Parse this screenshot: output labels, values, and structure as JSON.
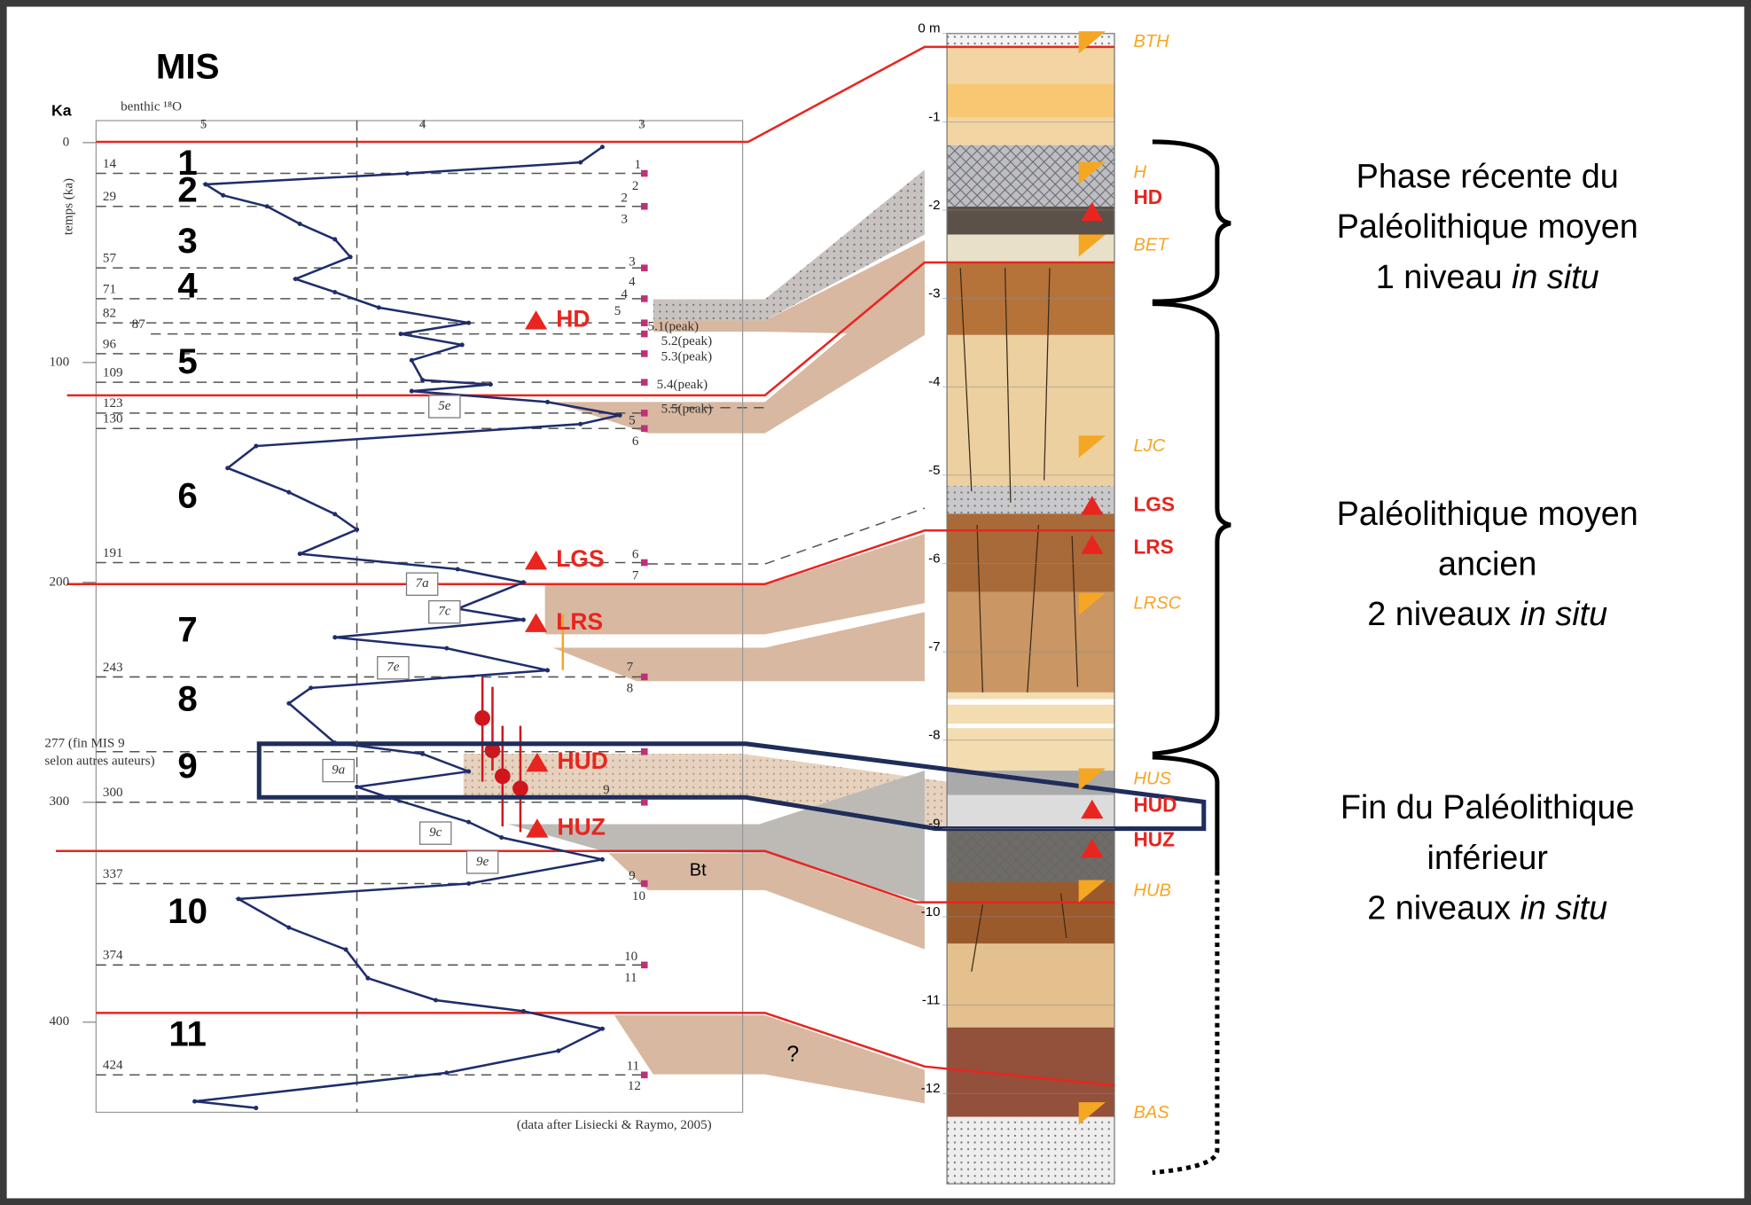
{
  "chart_data": {
    "type": "line",
    "title": "MIS",
    "y_unit_label": "Ka",
    "ylabel": "temps (ka)",
    "xlabel": "benthic ¹⁸O",
    "source": "(data after Lisiecki & Raymo, 2005)",
    "xlim": [
      5.49,
      2.54
    ],
    "xticks": [
      5,
      4,
      3
    ],
    "ylim": [
      -10,
      441
    ],
    "yticks": [
      0,
      100,
      200,
      300,
      400
    ],
    "reference_x": 4.3,
    "series": [
      {
        "color": "#1f2d6b",
        "x": [
          3.18,
          3.28,
          4.07,
          4.99,
          4.91,
          4.71,
          4.56,
          4.4,
          4.33,
          4.58,
          4.4,
          4.2,
          3.79,
          4.1,
          3.82,
          4.05,
          4.0,
          3.69,
          4.05,
          3.43,
          3.1,
          3.28,
          4.76,
          4.89,
          4.61,
          4.4,
          4.3,
          4.56,
          3.84,
          3.54,
          3.84,
          3.54,
          4.4,
          3.89,
          3.43,
          4.51,
          4.61,
          4.4,
          4.0,
          3.79,
          4.3,
          4.15,
          3.79,
          3.64,
          3.18,
          3.79,
          4.84,
          4.61,
          4.35,
          4.25,
          3.94,
          3.54,
          3.18,
          3.38,
          3.89,
          5.04,
          4.76
        ],
        "values": [
          2,
          9,
          14,
          19,
          24,
          29,
          37,
          44,
          52,
          62,
          68,
          75,
          82,
          87,
          92,
          99,
          108,
          110,
          113,
          118,
          124,
          128,
          138,
          148,
          159,
          169,
          176,
          187,
          194,
          200,
          212,
          217,
          225,
          230,
          240,
          248,
          255,
          273,
          278,
          286,
          293,
          298,
          309,
          316,
          326,
          337,
          344,
          357,
          367,
          380,
          390,
          395,
          403,
          413,
          423,
          436,
          439
        ]
      }
    ],
    "boundaries": [
      14,
      29,
      57,
      71,
      82,
      87,
      96,
      109,
      123,
      130,
      191,
      243,
      {
        "value": 277,
        "label": [
          "277 (fin MIS 9",
          "selon autres auteurs)"
        ]
      },
      300,
      337,
      374,
      424
    ],
    "mis_labels": [
      "1",
      "2",
      "3",
      "4",
      "5",
      "6",
      "7",
      "8",
      "9",
      "10",
      "11"
    ],
    "substage_labels": [
      "1",
      "2",
      "2",
      "3",
      "3",
      "4",
      "4",
      "5",
      "5.1(peak)",
      "5.2(peak)",
      "5.3(peak)",
      "5.4(peak)",
      "5.5(peak)",
      "5",
      "6",
      "6",
      "7",
      "7",
      "8",
      "9",
      "9",
      "10",
      "10",
      "11",
      "11",
      "12"
    ],
    "substage_boxes": [
      "5e",
      "7a",
      "7c",
      "7e",
      "9a",
      "9c",
      "9e"
    ],
    "curve_markers": [
      "HD",
      "LGS",
      "LRS",
      "HUD",
      "HUZ"
    ],
    "marker_color": "#e8251f",
    "band_labels": [
      "Bt",
      "?"
    ]
  },
  "column": {
    "depth_ticks": [
      {
        "value": 0,
        "label": "0 m"
      },
      -1,
      -2,
      -3,
      -4,
      -5,
      -6,
      -7,
      -8,
      -9,
      -10,
      -11,
      -12
    ],
    "other_color": "#f5a623",
    "other_levels": [
      "BTH",
      "H",
      "BET",
      "LJC",
      "LRSC",
      "HUS",
      "HUB",
      "BAS"
    ],
    "level_color": "#e8251f",
    "in_situ_levels": [
      "HD",
      "LGS",
      "LRS",
      "HUD",
      "HUZ"
    ]
  },
  "phases": [
    {
      "lines": [
        "Phase récente du",
        "Paléolithique moyen"
      ],
      "count": "1 niveau",
      "italic": "in situ"
    },
    {
      "lines": [
        "Paléolithique moyen",
        "ancien"
      ],
      "count": "2 niveaux",
      "italic": "in situ"
    },
    {
      "lines": [
        "Fin du Paléolithique",
        "inférieur"
      ],
      "count": "2 niveaux",
      "italic": "in situ"
    }
  ]
}
